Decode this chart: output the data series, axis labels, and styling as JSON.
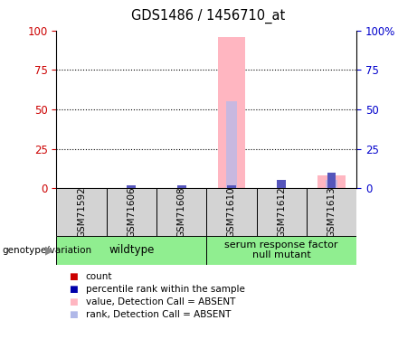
{
  "title": "GDS1486 / 1456710_at",
  "samples": [
    "GSM71592",
    "GSM71606",
    "GSM71608",
    "GSM71610",
    "GSM71612",
    "GSM71613"
  ],
  "pink_bar_values": [
    0,
    0,
    0,
    96,
    0,
    8
  ],
  "pink_rank_values": [
    0,
    0,
    0,
    55,
    0,
    5
  ],
  "blue_bar_values": [
    0,
    2,
    2,
    2,
    5,
    10
  ],
  "left_yaxis_color": "#cc0000",
  "right_yaxis_color": "#0000cc",
  "yticks": [
    0,
    25,
    50,
    75,
    100
  ],
  "sample_box_color": "#d3d3d3",
  "group_box_color": "#90ee90",
  "plot_bg": "#ffffff",
  "wildtype_label": "wildtype",
  "mutant_label": "serum response factor\nnull mutant",
  "genotype_label": "genotype/variation",
  "legend_items": [
    {
      "label": "count",
      "color": "#cc0000"
    },
    {
      "label": "percentile rank within the sample",
      "color": "#0000aa"
    },
    {
      "label": "value, Detection Call = ABSENT",
      "color": "#ffb6c1"
    },
    {
      "label": "rank, Detection Call = ABSENT",
      "color": "#b0b8e8"
    }
  ]
}
